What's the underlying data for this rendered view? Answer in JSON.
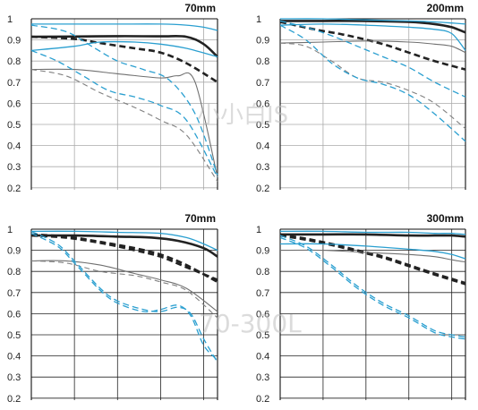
{
  "colors": {
    "thick_sag": "#222222",
    "thick_mer": "#222222",
    "thin_sag": "#707070",
    "thin_mer": "#808080",
    "blue_sag": "#2a9fd0",
    "blue_mer": "#2a9fd0",
    "grid": "#aaaaaa",
    "axis": "#111111"
  },
  "watermarks": [
    {
      "text": "小小白IS"
    },
    {
      "text": "70-300L"
    }
  ],
  "chart_data": [
    {
      "type": "line",
      "title": "70mm",
      "xlabel": "",
      "ylabel": "",
      "xlim": [
        0,
        21.6
      ],
      "ylim": [
        0.2,
        1.0
      ],
      "yticks": [
        "1",
        "0.9",
        "0.8",
        "0.7",
        "0.6",
        "0.5",
        "0.4",
        "0.3",
        "0.2"
      ],
      "grid": true,
      "series": [
        {
          "style": "thick_sag",
          "x": [
            0,
            5,
            10,
            15,
            18,
            20,
            21.6
          ],
          "y": [
            0.915,
            0.916,
            0.918,
            0.917,
            0.915,
            0.88,
            0.82
          ]
        },
        {
          "style": "thick_mer",
          "x": [
            0,
            5,
            8,
            12,
            15,
            18,
            21.6
          ],
          "y": [
            0.915,
            0.905,
            0.885,
            0.86,
            0.84,
            0.79,
            0.7
          ]
        },
        {
          "style": "thin_sag",
          "x": [
            0,
            5,
            10,
            15,
            17,
            19,
            21.6
          ],
          "y": [
            0.76,
            0.76,
            0.74,
            0.72,
            0.73,
            0.7,
            0.25
          ]
        },
        {
          "style": "thin_mer",
          "x": [
            0,
            4,
            8,
            12,
            15,
            18,
            21.6
          ],
          "y": [
            0.76,
            0.73,
            0.65,
            0.58,
            0.52,
            0.45,
            0.23
          ]
        },
        {
          "style": "blue_sag",
          "x": [
            0,
            5,
            10,
            15,
            18,
            20,
            21.6
          ],
          "y": [
            0.975,
            0.975,
            0.975,
            0.975,
            0.97,
            0.96,
            0.945
          ]
        },
        {
          "style": "blue_sag",
          "x": [
            0,
            5,
            8,
            12,
            15,
            18,
            21.6
          ],
          "y": [
            0.85,
            0.87,
            0.89,
            0.89,
            0.88,
            0.86,
            0.82
          ]
        },
        {
          "style": "blue_mer",
          "x": [
            0,
            4,
            7,
            10,
            13,
            16,
            19,
            21.6
          ],
          "y": [
            0.97,
            0.94,
            0.87,
            0.8,
            0.76,
            0.71,
            0.55,
            0.26
          ]
        },
        {
          "style": "blue_mer",
          "x": [
            0,
            3,
            6,
            9,
            12,
            15,
            18,
            21.6
          ],
          "y": [
            0.85,
            0.8,
            0.73,
            0.66,
            0.63,
            0.59,
            0.52,
            0.25
          ]
        }
      ]
    },
    {
      "type": "line",
      "title": "200mm",
      "xlabel": "",
      "ylabel": "",
      "xlim": [
        0,
        21.6
      ],
      "ylim": [
        0.2,
        1.0
      ],
      "yticks": [
        "1",
        "0.9",
        "0.8",
        "0.7",
        "0.6",
        "0.5",
        "0.4",
        "0.3",
        "0.2"
      ],
      "grid": true,
      "series": [
        {
          "style": "thick_sag",
          "x": [
            0,
            5,
            10,
            15,
            18,
            20,
            21.6
          ],
          "y": [
            0.99,
            0.99,
            0.99,
            0.985,
            0.975,
            0.96,
            0.935
          ]
        },
        {
          "style": "thick_mer",
          "x": [
            0,
            4,
            8,
            12,
            15,
            18,
            21.6
          ],
          "y": [
            0.985,
            0.95,
            0.92,
            0.88,
            0.84,
            0.8,
            0.76
          ]
        },
        {
          "style": "thin_sag",
          "x": [
            0,
            5,
            10,
            15,
            18,
            20,
            21.6
          ],
          "y": [
            0.885,
            0.89,
            0.895,
            0.89,
            0.88,
            0.87,
            0.84
          ]
        },
        {
          "style": "thin_mer",
          "x": [
            0,
            3,
            6,
            9,
            12,
            15,
            18,
            21.6
          ],
          "y": [
            0.885,
            0.87,
            0.8,
            0.72,
            0.7,
            0.66,
            0.6,
            0.48
          ]
        },
        {
          "style": "blue_sag",
          "x": [
            0,
            5,
            10,
            15,
            18,
            20,
            21.6
          ],
          "y": [
            1.0,
            1.0,
            0.995,
            0.99,
            0.985,
            0.98,
            0.975
          ]
        },
        {
          "style": "blue_sag",
          "x": [
            0,
            5,
            10,
            15,
            18,
            20,
            21.6
          ],
          "y": [
            0.97,
            0.975,
            0.97,
            0.96,
            0.95,
            0.93,
            0.85
          ]
        },
        {
          "style": "blue_mer",
          "x": [
            0,
            3,
            6,
            9,
            12,
            15,
            18,
            21.6
          ],
          "y": [
            0.99,
            0.96,
            0.92,
            0.87,
            0.82,
            0.77,
            0.7,
            0.63
          ]
        },
        {
          "style": "blue_mer",
          "x": [
            0,
            3,
            6,
            9,
            12,
            15,
            18,
            21.6
          ],
          "y": [
            0.97,
            0.9,
            0.79,
            0.72,
            0.69,
            0.64,
            0.55,
            0.42
          ]
        }
      ]
    },
    {
      "type": "line",
      "title": "70mm",
      "xlabel": "",
      "ylabel": "",
      "xlim": [
        0,
        21.6
      ],
      "ylim": [
        0.2,
        1.0
      ],
      "yticks": [
        "1",
        "0.9",
        "0.8",
        "0.7",
        "0.6",
        "0.5",
        "0.4",
        "0.3",
        "0.2"
      ],
      "grid": true,
      "series": [
        {
          "style": "thick_sag",
          "x": [
            0,
            5,
            10,
            14,
            17,
            20,
            21.6
          ],
          "y": [
            0.97,
            0.97,
            0.965,
            0.96,
            0.945,
            0.91,
            0.87
          ]
        },
        {
          "style": "thick_mer",
          "x": [
            0,
            4,
            8,
            12,
            15,
            18,
            21.6
          ],
          "y": [
            0.975,
            0.965,
            0.94,
            0.91,
            0.88,
            0.83,
            0.75
          ]
        },
        {
          "style": "thick_mer",
          "x": [
            0,
            4,
            8,
            12,
            15,
            18,
            21.6
          ],
          "y": [
            0.97,
            0.96,
            0.935,
            0.9,
            0.87,
            0.82,
            0.76
          ]
        },
        {
          "style": "thin_sag",
          "x": [
            0,
            4,
            8,
            12,
            15,
            18,
            21.6
          ],
          "y": [
            0.85,
            0.85,
            0.83,
            0.79,
            0.76,
            0.72,
            0.61
          ]
        },
        {
          "style": "thin_mer",
          "x": [
            0,
            4,
            8,
            12,
            15,
            18,
            21.6
          ],
          "y": [
            0.85,
            0.84,
            0.8,
            0.78,
            0.75,
            0.71,
            0.58
          ]
        },
        {
          "style": "blue_sag",
          "x": [
            0,
            5,
            10,
            15,
            18,
            20,
            21.6
          ],
          "y": [
            0.99,
            0.99,
            0.985,
            0.98,
            0.96,
            0.93,
            0.9
          ]
        },
        {
          "style": "blue_mer",
          "x": [
            0,
            3,
            5,
            8,
            10,
            13,
            15,
            17,
            18.5,
            20,
            21.6
          ],
          "y": [
            0.99,
            0.93,
            0.85,
            0.72,
            0.66,
            0.62,
            0.61,
            0.63,
            0.6,
            0.48,
            0.37
          ]
        },
        {
          "style": "blue_mer",
          "x": [
            0,
            3,
            5,
            8,
            10,
            13,
            15,
            17,
            18.5,
            20,
            21.6
          ],
          "y": [
            0.98,
            0.92,
            0.84,
            0.71,
            0.65,
            0.61,
            0.62,
            0.64,
            0.59,
            0.45,
            0.38
          ]
        }
      ]
    },
    {
      "type": "line",
      "title": "300mm",
      "xlabel": "",
      "ylabel": "",
      "xlim": [
        0,
        21.6
      ],
      "ylim": [
        0.2,
        1.0
      ],
      "yticks": [
        "1",
        "0.9",
        "0.8",
        "0.7",
        "0.6",
        "0.5",
        "0.4",
        "0.3",
        "0.2"
      ],
      "grid": true,
      "series": [
        {
          "style": "thick_sag",
          "x": [
            0,
            5,
            10,
            15,
            18,
            20,
            21.6
          ],
          "y": [
            0.975,
            0.975,
            0.975,
            0.97,
            0.97,
            0.97,
            0.965
          ]
        },
        {
          "style": "thick_mer",
          "x": [
            0,
            3,
            6,
            9,
            12,
            15,
            18,
            21.6
          ],
          "y": [
            0.975,
            0.955,
            0.93,
            0.9,
            0.87,
            0.83,
            0.79,
            0.745
          ]
        },
        {
          "style": "thick_mer",
          "x": [
            0,
            3,
            6,
            9,
            12,
            15,
            18,
            21.6
          ],
          "y": [
            0.97,
            0.95,
            0.925,
            0.895,
            0.865,
            0.825,
            0.785,
            0.74
          ]
        },
        {
          "style": "thin_sag",
          "x": [
            0,
            5,
            10,
            15,
            18,
            20,
            21.6
          ],
          "y": [
            0.9,
            0.9,
            0.89,
            0.88,
            0.87,
            0.855,
            0.845
          ]
        },
        {
          "style": "blue_sag",
          "x": [
            0,
            5,
            10,
            15,
            18,
            20,
            21.6
          ],
          "y": [
            0.99,
            0.99,
            0.985,
            0.985,
            0.98,
            0.98,
            0.975
          ]
        },
        {
          "style": "blue_sag",
          "x": [
            0,
            5,
            10,
            15,
            18,
            20,
            21.6
          ],
          "y": [
            0.93,
            0.93,
            0.92,
            0.905,
            0.895,
            0.88,
            0.86
          ]
        },
        {
          "style": "blue_mer",
          "x": [
            0,
            3,
            6,
            9,
            12,
            15,
            18,
            20,
            21.6
          ],
          "y": [
            0.97,
            0.92,
            0.83,
            0.73,
            0.65,
            0.59,
            0.52,
            0.5,
            0.49
          ]
        },
        {
          "style": "blue_mer",
          "x": [
            0,
            3,
            6,
            9,
            12,
            15,
            18,
            20,
            21.6
          ],
          "y": [
            0.96,
            0.91,
            0.82,
            0.72,
            0.64,
            0.58,
            0.51,
            0.49,
            0.48
          ]
        }
      ]
    }
  ]
}
